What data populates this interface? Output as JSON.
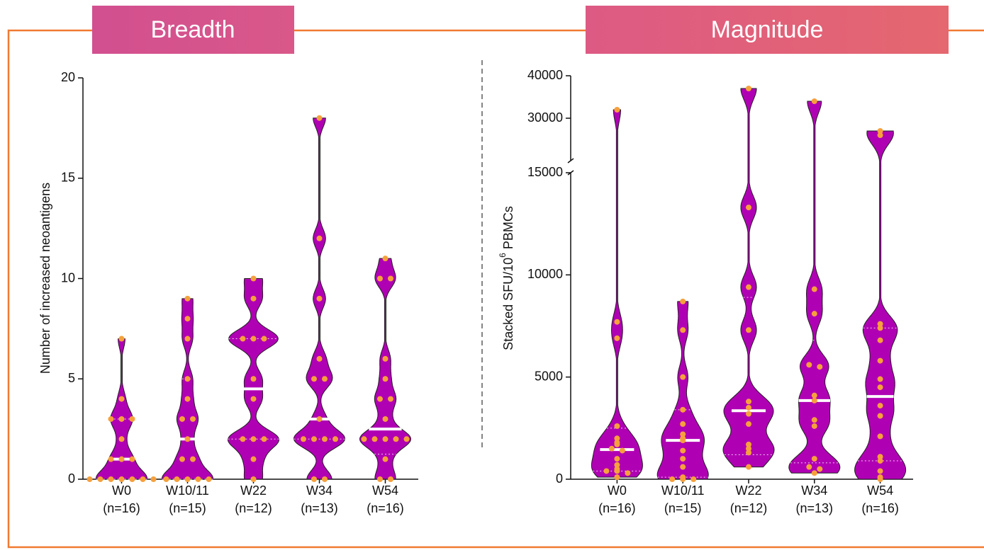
{
  "chart_data": [
    {
      "type": "violin",
      "title": "Breadth",
      "ylabel": "Number of increased neoantigens",
      "categories": [
        "W0",
        "W10/11",
        "W22",
        "W34",
        "W54"
      ],
      "category_counts": [
        "(n=16)",
        "(n=15)",
        "(n=12)",
        "(n=13)",
        "(n=16)"
      ],
      "values": [
        [
          7,
          4,
          3,
          3,
          3,
          2,
          1,
          1,
          1,
          0,
          0,
          0,
          0,
          0,
          0,
          0
        ],
        [
          9,
          8,
          7,
          5,
          4,
          3,
          3,
          2,
          1,
          1,
          0,
          0,
          0,
          0,
          0
        ],
        [
          10,
          9,
          7,
          7,
          7,
          5,
          4,
          2,
          2,
          2,
          1,
          0
        ],
        [
          18,
          12,
          9,
          6,
          5,
          5,
          3,
          2,
          2,
          2,
          2,
          0,
          0
        ],
        [
          11,
          10,
          10,
          6,
          5,
          4,
          4,
          3,
          2,
          2,
          2,
          2,
          2,
          1,
          0,
          0
        ]
      ],
      "medians": [
        1,
        2,
        4.5,
        3,
        2.5
      ],
      "quartiles": [
        [
          0,
          3
        ],
        [
          0,
          5
        ],
        [
          2,
          7
        ],
        [
          2,
          7.5
        ],
        [
          1.25,
          8.25
        ]
      ],
      "color": "#b000b4",
      "point_color": "#f6a03c",
      "ylim": [
        0,
        20
      ],
      "yticks": [
        0,
        5,
        10,
        15,
        20
      ]
    },
    {
      "type": "violin",
      "title": "Magnitude",
      "ylabel": "Stacked SFU/10",
      "ylabel_sup": "6",
      "ylabel_end": " PBMCs",
      "categories": [
        "W0",
        "W10/11",
        "W22",
        "W34",
        "W54"
      ],
      "category_counts": [
        "(n=16)",
        "(n=15)",
        "(n=12)",
        "(n=13)",
        "(n=16)"
      ],
      "values": [
        [
          32000,
          7700,
          6900,
          2600,
          2000,
          1800,
          1700,
          1500,
          1400,
          1000,
          700,
          500,
          400,
          400,
          300,
          100
        ],
        [
          8700,
          7300,
          5000,
          3400,
          2700,
          2200,
          2000,
          1900,
          1400,
          1000,
          600,
          100,
          0,
          0,
          0
        ],
        [
          37000,
          13300,
          9400,
          7300,
          3800,
          3500,
          3200,
          2700,
          1700,
          1500,
          1300,
          600
        ],
        [
          34000,
          9300,
          8100,
          5600,
          5500,
          4100,
          3850,
          2900,
          2600,
          1000,
          600,
          500,
          300
        ],
        [
          27000,
          26000,
          7600,
          7400,
          6800,
          5800,
          4900,
          4500,
          3600,
          3100,
          2100,
          1100,
          900,
          400,
          100,
          0
        ]
      ],
      "medians": [
        1450,
        1900,
        3350,
        3850,
        4050
      ],
      "quartiles": [
        [
          400,
          2500
        ],
        [
          100,
          3400
        ],
        [
          1200,
          8900
        ],
        [
          800,
          6800
        ],
        [
          900,
          7400
        ]
      ],
      "color": "#b000b4",
      "point_color": "#f6a03c",
      "ylim": [
        0,
        15000
      ],
      "yticks": [
        0,
        5000,
        10000,
        15000
      ],
      "break_ylim": [
        20000,
        40000
      ],
      "break_yticks": [
        30000,
        40000
      ]
    }
  ]
}
